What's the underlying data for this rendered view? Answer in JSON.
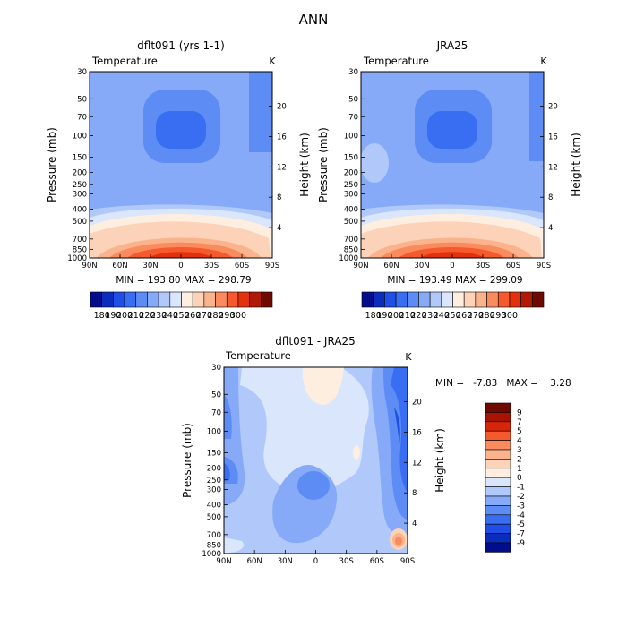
{
  "figure_title": "ANN",
  "panels": [
    {
      "title": "dflt091 (yrs 1-1)",
      "variable": "Temperature",
      "unit": "K",
      "stats": "MIN = 193.80   MAX = 298.79"
    },
    {
      "title": "JRA25",
      "variable": "Temperature",
      "unit": "K",
      "stats": "MIN = 193.49   MAX = 299.09"
    },
    {
      "title": "dflt091 - JRA25",
      "variable": "Temperature",
      "unit": "K",
      "stats": "MIN =   -7.83   MAX =    3.28"
    }
  ],
  "axes": {
    "ylabel_left": "Pressure (mb)",
    "ylabel_right": "Height (km)",
    "pressure_ticks": [
      "30",
      "50",
      "70",
      "100",
      "150",
      "200",
      "250",
      "300",
      "400",
      "500",
      "700",
      "850",
      "1000"
    ],
    "height_ticks": [
      "4",
      "8",
      "12",
      "16",
      "20"
    ],
    "lat_ticks": [
      "90N",
      "60N",
      "30N",
      "0",
      "30S",
      "60S",
      "90S"
    ]
  },
  "colors": {
    "abs_levels": [
      "#000e8c",
      "#0a2dbd",
      "#1f4fe6",
      "#3a6ef2",
      "#5d8cf5",
      "#86aaf7",
      "#b0c9fa",
      "#d9e6fc",
      "#fdeee0",
      "#fcd3b8",
      "#fbb38e",
      "#f98b5e",
      "#f55a2e",
      "#e3300d",
      "#b01a04",
      "#6e0a00"
    ],
    "diff_levels": [
      "#000e8c",
      "#0a2dbd",
      "#1f4fe6",
      "#3a6ef2",
      "#5d8cf5",
      "#86aaf7",
      "#b0c9fa",
      "#d9e6fc",
      "#fdeee0",
      "#fcd3b8",
      "#fbb38e",
      "#f98b5e",
      "#f55a2e",
      "#d7250a",
      "#a81404",
      "#6e0a00"
    ]
  },
  "chart_data": [
    {
      "type": "heatmap",
      "title": "dflt091 (yrs 1-1)",
      "xlabel": "",
      "ylabel": "Pressure (mb)",
      "y2label": "Height (km)",
      "x_range": [
        -90,
        90
      ],
      "y_range_mb": [
        1000,
        30
      ],
      "y_scale": "log",
      "min": 193.8,
      "max": 298.79,
      "colorbar_labels": [
        "180",
        "190",
        "200",
        "210",
        "220",
        "230",
        "240",
        "250",
        "260",
        "270",
        "280",
        "290",
        "300"
      ]
    },
    {
      "type": "heatmap",
      "title": "JRA25",
      "xlabel": "",
      "ylabel": "Pressure (mb)",
      "y2label": "Height (km)",
      "x_range": [
        -90,
        90
      ],
      "y_range_mb": [
        1000,
        30
      ],
      "y_scale": "log",
      "min": 193.49,
      "max": 299.09,
      "colorbar_labels": [
        "180",
        "190",
        "200",
        "210",
        "220",
        "230",
        "240",
        "250",
        "260",
        "270",
        "280",
        "290",
        "300"
      ]
    },
    {
      "type": "heatmap",
      "title": "dflt091 - JRA25",
      "xlabel": "",
      "ylabel": "Pressure (mb)",
      "y2label": "Height (km)",
      "x_range": [
        -90,
        90
      ],
      "y_range_mb": [
        1000,
        30
      ],
      "y_scale": "log",
      "min": -7.83,
      "max": 3.28,
      "colorbar_labels": [
        "9",
        "7",
        "5",
        "4",
        "3",
        "2",
        "1",
        "0",
        "-1",
        "-2",
        "-3",
        "-4",
        "-5",
        "-7",
        "-9"
      ]
    }
  ]
}
